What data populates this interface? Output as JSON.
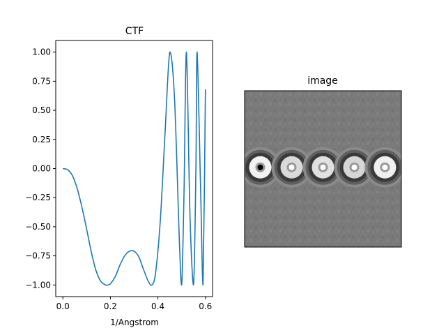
{
  "chart_data": [
    {
      "type": "line",
      "title": "CTF",
      "xlabel": "1/Angstrom",
      "ylabel": "",
      "xlim": [
        -0.03,
        0.63
      ],
      "ylim": [
        -1.1,
        1.1
      ],
      "xticks": [
        0.0,
        0.2,
        0.4,
        0.6
      ],
      "xtick_labels": [
        "0.0",
        "0.2",
        "0.4",
        "0.6"
      ],
      "yticks": [
        1.0,
        0.75,
        0.5,
        0.25,
        0.0,
        -0.25,
        -0.5,
        -0.75,
        -1.0
      ],
      "ytick_labels": [
        "1.00",
        "0.75",
        "0.50",
        "0.25",
        "0.00",
        "−0.25",
        "−0.50",
        "−0.75",
        "−1.00"
      ],
      "grid": false,
      "color": "#1f77b4",
      "series": [
        {
          "x": [
            0.0,
            0.02,
            0.04,
            0.06,
            0.08,
            0.1,
            0.12,
            0.14,
            0.16,
            0.18,
            0.19,
            0.2,
            0.22,
            0.24,
            0.26,
            0.28,
            0.3,
            0.32,
            0.34,
            0.36,
            0.375,
            0.39,
            0.41,
            0.43,
            0.45,
            0.47,
            0.49,
            0.5,
            0.51,
            0.52,
            0.535,
            0.55,
            0.56,
            0.565,
            0.58,
            0.59,
            0.6
          ],
          "y": [
            0.0,
            -0.01,
            -0.06,
            -0.17,
            -0.33,
            -0.52,
            -0.72,
            -0.88,
            -0.97,
            -1.0,
            -1.0,
            -0.99,
            -0.93,
            -0.83,
            -0.75,
            -0.71,
            -0.71,
            -0.76,
            -0.87,
            -0.97,
            -1.0,
            -0.9,
            -0.45,
            0.3,
            1.0,
            0.6,
            -0.6,
            -1.0,
            -0.2,
            1.0,
            -0.4,
            -1.0,
            0.0,
            1.0,
            -0.2,
            -1.0,
            0.68
          ]
        }
      ]
    },
    {
      "type": "heatmap",
      "title": "image",
      "colormap": "gray",
      "background": "#7a7a7a",
      "spots": [
        {
          "fraction_x": 0.1,
          "fraction_y": 0.49,
          "core": "#000000",
          "ring": "#f2f2f2"
        },
        {
          "fraction_x": 0.3,
          "fraction_y": 0.49,
          "core": "#ffffff",
          "ring": "#d9d9d9"
        },
        {
          "fraction_x": 0.5,
          "fraction_y": 0.49,
          "core": "#ffffff",
          "ring": "#e0e0e0"
        },
        {
          "fraction_x": 0.7,
          "fraction_y": 0.49,
          "core": "#ffffff",
          "ring": "#d6d6d6"
        },
        {
          "fraction_x": 0.895,
          "fraction_y": 0.49,
          "core": "#ffffff",
          "ring": "#f0f0f0"
        }
      ]
    }
  ]
}
